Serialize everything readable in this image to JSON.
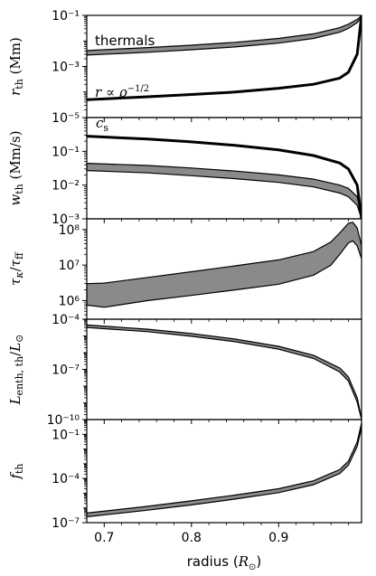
{
  "chart_data": {
    "type": "line",
    "xlabel": "radius (R⊙)",
    "xlim": [
      0.68,
      0.995
    ],
    "xticks": [
      0.7,
      0.8,
      0.9
    ],
    "xtick_labels": [
      "0.7",
      "0.8",
      "0.9"
    ],
    "panels": [
      {
        "key": "r_th",
        "ylabel": "r_th (Mm)",
        "yscale": "log",
        "ylim": [
          1e-05,
          0.1
        ],
        "yticks": [
          1e-05,
          0.001,
          0.1
        ],
        "ytick_labels": [
          "10⁻⁵",
          "10⁻³",
          "10⁻¹"
        ],
        "annotations": [
          "thermals",
          "r ∝ ρ^−1/2"
        ],
        "band": {
          "name": "thermals",
          "x": [
            0.68,
            0.75,
            0.8,
            0.85,
            0.9,
            0.94,
            0.97,
            0.98,
            0.99,
            0.995
          ],
          "upper": [
            0.0042,
            0.0055,
            0.0068,
            0.0088,
            0.0125,
            0.019,
            0.033,
            0.045,
            0.07,
            0.095
          ],
          "lower": [
            0.0028,
            0.0036,
            0.0045,
            0.0058,
            0.0082,
            0.0125,
            0.022,
            0.031,
            0.052,
            0.085
          ]
        },
        "line": {
          "name": "r ∝ ρ^−1/2",
          "x": [
            0.68,
            0.75,
            0.8,
            0.85,
            0.9,
            0.94,
            0.97,
            0.98,
            0.99,
            0.995
          ],
          "y": [
            5e-05,
            6.5e-05,
            8e-05,
            0.0001,
            0.00014,
            0.0002,
            0.00035,
            0.0006,
            0.003,
            0.1
          ]
        }
      },
      {
        "key": "w_th",
        "ylabel": "w_th (Mm/s)",
        "yscale": "log",
        "ylim": [
          0.001,
          1
        ],
        "yticks": [
          0.001,
          0.01,
          0.1
        ],
        "ytick_labels": [
          "10⁻³",
          "10⁻²",
          "10⁻¹"
        ],
        "annotations": [
          "c_s"
        ],
        "band": {
          "name": "thermals",
          "x": [
            0.68,
            0.75,
            0.8,
            0.85,
            0.9,
            0.94,
            0.97,
            0.98,
            0.99,
            0.995
          ],
          "upper": [
            0.044,
            0.038,
            0.032,
            0.026,
            0.02,
            0.015,
            0.01,
            0.008,
            0.0045,
            0.0011
          ],
          "lower": [
            0.027,
            0.023,
            0.019,
            0.0155,
            0.012,
            0.0088,
            0.0058,
            0.0045,
            0.0025,
            0.001
          ]
        },
        "line": {
          "name": "c_s",
          "x": [
            0.68,
            0.75,
            0.8,
            0.85,
            0.9,
            0.94,
            0.97,
            0.98,
            0.99,
            0.995
          ],
          "y": [
            0.28,
            0.23,
            0.19,
            0.15,
            0.11,
            0.075,
            0.045,
            0.03,
            0.01,
            0.001
          ]
        }
      },
      {
        "key": "tau",
        "ylabel": "τ_κ/τ_ff",
        "yscale": "log",
        "ylim": [
          300000,
          200000000
        ],
        "yticks": [
          1000000,
          10000000,
          100000000
        ],
        "ytick_labels": [
          "10⁶",
          "10⁷",
          "10⁸"
        ],
        "annotations": [],
        "band": {
          "name": "thermals",
          "x": [
            0.68,
            0.7,
            0.75,
            0.8,
            0.85,
            0.9,
            0.94,
            0.96,
            0.97,
            0.98,
            0.985,
            0.99,
            0.995
          ],
          "upper": [
            3000000,
            3100000,
            4500000,
            6500000,
            9500000,
            14000000,
            24000000,
            45000000,
            80000000,
            150000000,
            160000000,
            110000000,
            35000000
          ],
          "lower": [
            750000,
            650000,
            1000000,
            1400000,
            2000000,
            2900000,
            5200000,
            10000000,
            20000000,
            42000000,
            48000000,
            35000000,
            15000000
          ]
        }
      },
      {
        "key": "L_enth",
        "ylabel": "L_enth,th/L⊙",
        "yscale": "log",
        "ylim": [
          1e-10,
          0.0001
        ],
        "yticks": [
          1e-10,
          1e-07,
          0.0001
        ],
        "ytick_labels": [
          "10⁻¹⁰",
          "10⁻⁷",
          "10⁻⁴"
        ],
        "annotations": [],
        "band": {
          "name": "thermals",
          "x": [
            0.68,
            0.75,
            0.8,
            0.85,
            0.9,
            0.94,
            0.97,
            0.98,
            0.99,
            0.995
          ],
          "upper": [
            4.5e-05,
            2.5e-05,
            1.4e-05,
            6.5e-06,
            2.4e-06,
            7e-07,
            1.2e-07,
            3.5e-08,
            2e-09,
            1.2e-10
          ],
          "lower": [
            3.2e-05,
            1.8e-05,
            9.5e-06,
            4.5e-06,
            1.6e-06,
            4.5e-07,
            7e-08,
            2e-08,
            1.1e-09,
            1e-10
          ]
        }
      },
      {
        "key": "f_th",
        "ylabel": "f_th",
        "yscale": "log",
        "ylim": [
          1e-07,
          1
        ],
        "yticks": [
          1e-07,
          0.0001,
          0.1
        ],
        "ytick_labels": [
          "10⁻⁷",
          "10⁻⁴",
          "10⁻¹"
        ],
        "annotations": [],
        "band": {
          "name": "thermals",
          "x": [
            0.68,
            0.75,
            0.8,
            0.85,
            0.9,
            0.94,
            0.97,
            0.98,
            0.99,
            0.995
          ],
          "upper": [
            4.5e-07,
            1.3e-06,
            3e-06,
            7.5e-06,
            2e-05,
            7e-05,
            0.0004,
            0.0015,
            0.03,
            0.6
          ],
          "lower": [
            2.5e-07,
            7e-07,
            1.6e-06,
            4e-06,
            1.1e-05,
            3.8e-05,
            0.00022,
            0.0008,
            0.015,
            0.3
          ]
        }
      }
    ],
    "grid": false,
    "colors": {
      "band_fill": "#8a8a8a",
      "line": "#000000"
    }
  }
}
